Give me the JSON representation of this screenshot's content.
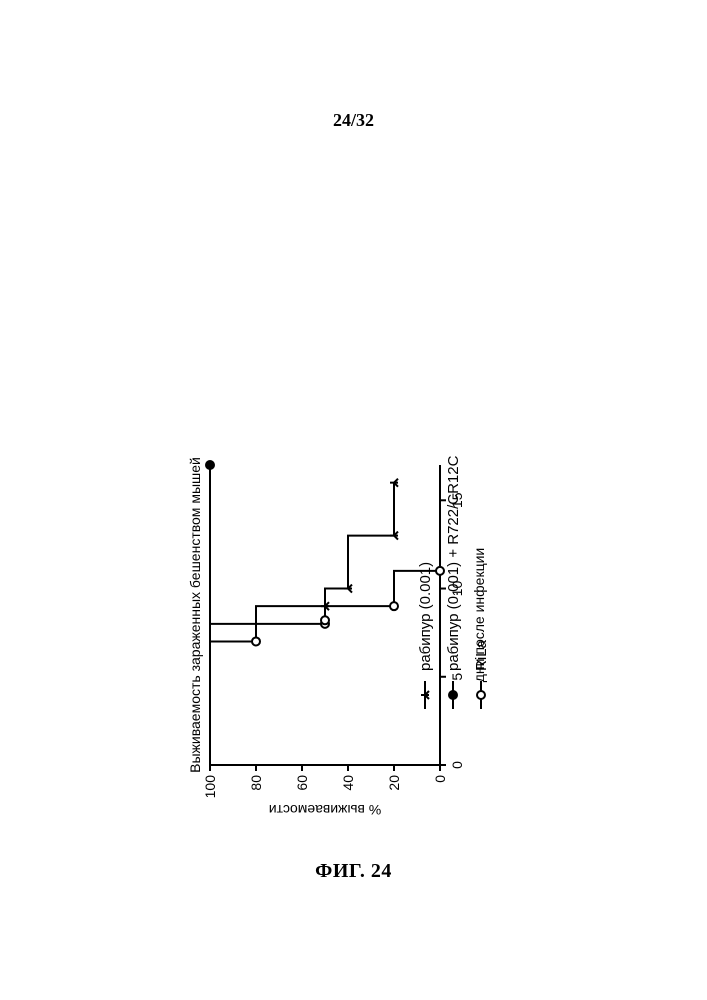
{
  "page": {
    "number_label": "24/32",
    "figure_label": "ФИГ. 24"
  },
  "chart": {
    "rotation_deg": 90,
    "title": "Выживаемость зараженных бешенством мышей",
    "title_fontsize": 14,
    "title_fontweight": "normal",
    "xlabel": "дни после инфекции",
    "ylabel": "% выживаемости",
    "axis_label_fontsize": 14,
    "tick_fontsize": 14,
    "x": {
      "min": 0,
      "max": 17,
      "ticks": [
        0,
        5,
        10,
        15
      ]
    },
    "y": {
      "min": 0,
      "max": 100,
      "ticks": [
        0,
        20,
        40,
        60,
        80,
        100
      ]
    },
    "axis_color": "#000000",
    "line_width": 2,
    "marker_size": 8,
    "background_color": "#ffffff",
    "series": [
      {
        "label": "рабипур  (0.001)",
        "color": "#000000",
        "marker": "tick-down",
        "filled": true,
        "points": [
          {
            "x": 0,
            "y": 100
          },
          {
            "x": 8,
            "y": 100
          },
          {
            "x": 8,
            "y": 80
          },
          {
            "x": 9,
            "y": 80
          },
          {
            "x": 9,
            "y": 50
          },
          {
            "x": 10,
            "y": 50
          },
          {
            "x": 10,
            "y": 40
          },
          {
            "x": 13,
            "y": 40
          },
          {
            "x": 13,
            "y": 20
          },
          {
            "x": 16,
            "y": 20
          }
        ],
        "marker_at": [
          9,
          10,
          13,
          16
        ]
      },
      {
        "label": "рабипур  (0.001) + R722/CR12C",
        "color": "#000000",
        "marker": "circle",
        "filled": true,
        "points": [
          {
            "x": 0,
            "y": 100
          },
          {
            "x": 17,
            "y": 100
          }
        ],
        "marker_at": [
          17
        ]
      },
      {
        "label": "RiLa",
        "color": "#000000",
        "marker": "circle",
        "filled": false,
        "points": [
          {
            "x": 0,
            "y": 100
          },
          {
            "x": 7,
            "y": 100
          },
          {
            "x": 7,
            "y": 80
          },
          {
            "x": 8,
            "y": 80
          },
          {
            "x": 8,
            "y": 50
          },
          {
            "x": 9,
            "y": 50
          },
          {
            "x": 9,
            "y": 20
          },
          {
            "x": 11,
            "y": 20
          },
          {
            "x": 11,
            "y": 0
          }
        ],
        "marker_at": [
          7,
          8,
          8.2,
          9,
          11
        ]
      }
    ],
    "legend": {
      "items": [
        {
          "series_index": 0
        },
        {
          "series_index": 1
        },
        {
          "series_index": 2
        }
      ],
      "fontsize": 15
    }
  }
}
